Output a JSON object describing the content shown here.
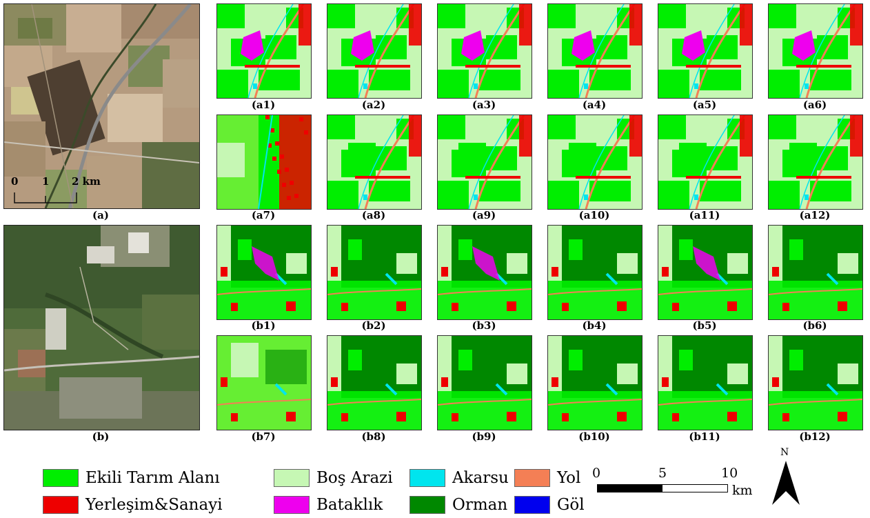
{
  "figure": {
    "panel_a_label": "(a)",
    "panel_b_label": "(b)",
    "satellite_scale": {
      "zero": "0",
      "one": "1",
      "two": "2 km"
    },
    "row_a_labels": [
      "(a1)",
      "(a2)",
      "(a3)",
      "(a4)",
      "(a5)",
      "(a6)",
      "(a7)",
      "(a8)",
      "(a9)",
      "(a10)",
      "(a11)",
      "(a12)"
    ],
    "row_b_labels": [
      "(b1)",
      "(b2)",
      "(b3)",
      "(b4)",
      "(b5)",
      "(b6)",
      "(b7)",
      "(b8)",
      "(b9)",
      "(b10)",
      "(b11)",
      "(b12)"
    ]
  },
  "legend": {
    "items": [
      {
        "label": "Ekili Tarım Alanı",
        "color": "#00ee00"
      },
      {
        "label": "Boş Arazi",
        "color": "#c6f7b4"
      },
      {
        "label": "Akarsu",
        "color": "#00e5ee"
      },
      {
        "label": "Yol",
        "color": "#f47f55"
      },
      {
        "label": "Yerleşim&Sanayi",
        "color": "#ee0000"
      },
      {
        "label": "Bataklık",
        "color": "#ee00ee"
      },
      {
        "label": "Orman",
        "color": "#008800"
      },
      {
        "label": "Göl",
        "color": "#0000ee"
      }
    ]
  },
  "scale_bar": {
    "t0": "0",
    "t5": "5",
    "t10": "10",
    "unit": "km"
  },
  "north": {
    "label": "N"
  }
}
